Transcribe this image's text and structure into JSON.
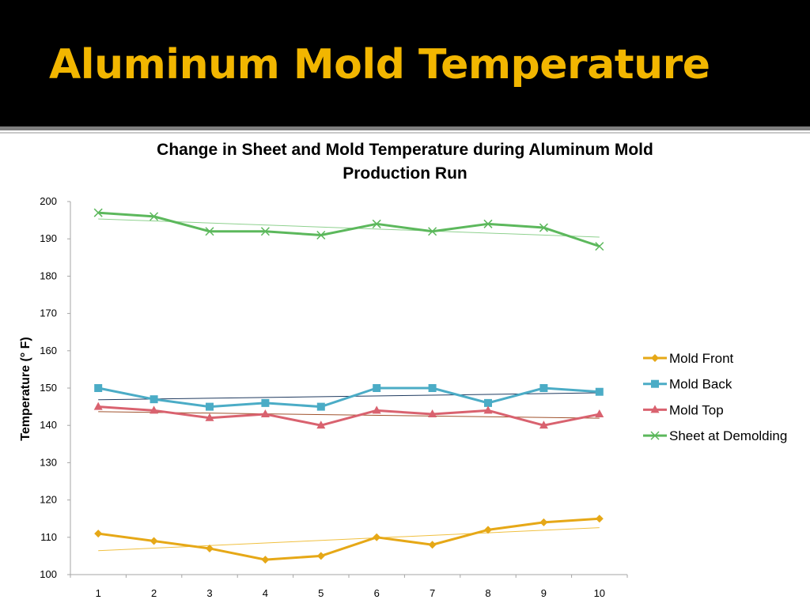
{
  "slide": {
    "title": "Aluminum Mold Temperature"
  },
  "chart_data": {
    "type": "line",
    "title": "Change in Sheet and Mold Temperature during Aluminum Mold Production Run",
    "xlabel": "",
    "ylabel": "Temperature (° F)",
    "categories": [
      "1",
      "2",
      "3",
      "4",
      "5",
      "6",
      "7",
      "8",
      "9",
      "10"
    ],
    "ylim": [
      100,
      200
    ],
    "ytick_step": 10,
    "grid": false,
    "legend_position": "right",
    "trendlines": true,
    "series": [
      {
        "name": "Mold Front",
        "color": "#e6a817",
        "trend_color": "#f0c040",
        "marker": "diamond",
        "values": [
          111,
          109,
          107,
          104,
          105,
          110,
          108,
          112,
          114,
          115
        ]
      },
      {
        "name": "Mold Back",
        "color": "#4bacc6",
        "trend_color": "#1f3a5f",
        "marker": "square",
        "values": [
          150,
          147,
          145,
          146,
          145,
          150,
          150,
          146,
          150,
          149
        ]
      },
      {
        "name": "Mold Top",
        "color": "#d9626f",
        "trend_color": "#a0522d",
        "marker": "triangle",
        "values": [
          145,
          144,
          142,
          143,
          140,
          144,
          143,
          144,
          140,
          143
        ]
      },
      {
        "name": "Sheet at Demolding",
        "color": "#5cb85c",
        "trend_color": "#8fd18f",
        "marker": "x",
        "values": [
          197,
          196,
          192,
          192,
          191,
          194,
          192,
          194,
          193,
          188
        ]
      }
    ]
  }
}
